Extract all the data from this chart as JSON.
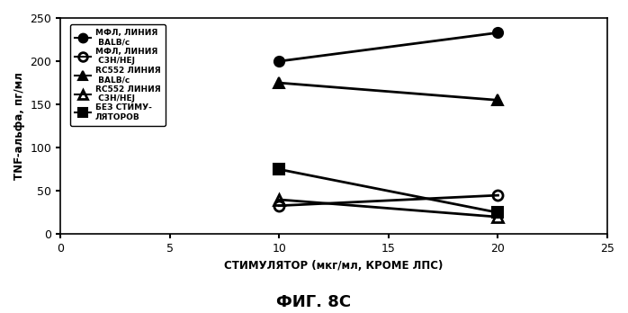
{
  "x": [
    10,
    20
  ],
  "series": [
    {
      "label_main": "МФЛ, ",
      "label_super": "ЛИНИЯ\nBALB/c",
      "values": [
        200,
        233
      ],
      "marker": "o",
      "fillstyle": "full",
      "color": "#000000",
      "markersize": 8,
      "linewidth": 2
    },
    {
      "label_main": "МФЛ, ",
      "label_super": "ЛИНИЯ\nС3Н/НЕJ",
      "values": [
        33,
        45
      ],
      "marker": "o",
      "fillstyle": "none",
      "color": "#000000",
      "markersize": 8,
      "linewidth": 2
    },
    {
      "label_main": "RC552 ",
      "label_super": "ЛИНИЯ\nBALB/c",
      "values": [
        175,
        155
      ],
      "marker": "^",
      "fillstyle": "full",
      "color": "#000000",
      "markersize": 8,
      "linewidth": 2
    },
    {
      "label_main": "RC552 ",
      "label_super": "ЛИНИЯ\nС3Н/НЕJ",
      "values": [
        40,
        20
      ],
      "marker": "^",
      "fillstyle": "none",
      "color": "#000000",
      "markersize": 8,
      "linewidth": 2
    },
    {
      "label_main": "БЕЗ СТИМУ-\nЛЯТОРОВ",
      "label_super": "",
      "values": [
        75,
        25
      ],
      "marker": "s",
      "fillstyle": "full",
      "color": "#000000",
      "markersize": 8,
      "linewidth": 2
    }
  ],
  "xlabel": "СТИМУЛЯТОР (мкг/мл, КРОМЕ ЛПС)",
  "ylabel": "TNF-альфа, пг/мл",
  "title": "ФИГ. 8С",
  "xlim": [
    0,
    25
  ],
  "ylim": [
    0,
    250
  ],
  "xticks": [
    0,
    5,
    10,
    15,
    20,
    25
  ],
  "yticks": [
    0,
    50,
    100,
    150,
    200,
    250
  ],
  "background_color": "#ffffff"
}
